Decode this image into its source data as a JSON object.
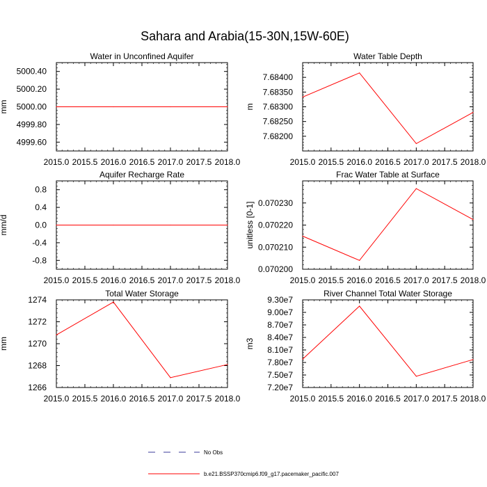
{
  "title": "Sahara and Arabia(15-30N,15W-60E)",
  "colors": {
    "series": "#ff0000",
    "obs": "#3b3b9a",
    "axis": "#000000"
  },
  "legend": {
    "obs_label": "No Obs",
    "model_label": "b.e21.BSSP370cmip6.f09_g17.pacemaker_pacific.007"
  },
  "chart_data": [
    {
      "type": "line",
      "title": "Water in Unconfined Aquifer",
      "ylabel": "mm",
      "xlabel": "",
      "x": [
        2015,
        2016,
        2017,
        2018
      ],
      "y": [
        5000.0,
        5000.0,
        5000.0,
        5000.0
      ],
      "xlim": [
        2015,
        2018
      ],
      "ylim": [
        4999.5,
        5000.5
      ],
      "yticks": [
        4999.6,
        4999.8,
        5000.0,
        5000.2,
        5000.4
      ],
      "yticklabels": [
        "4999.60",
        "4999.80",
        "5000.00",
        "5000.20",
        "5000.40"
      ]
    },
    {
      "type": "line",
      "title": "Water Table Depth",
      "ylabel": "m",
      "xlabel": "",
      "x": [
        2015,
        2016,
        2017,
        2018
      ],
      "y": [
        7.68333,
        7.68415,
        7.68175,
        7.68281
      ],
      "xlim": [
        2015,
        2018
      ],
      "ylim": [
        7.6815,
        7.6845
      ],
      "yticks": [
        7.682,
        7.6825,
        7.683,
        7.6835,
        7.684
      ],
      "yticklabels": [
        "7.68200",
        "7.68250",
        "7.68300",
        "7.68350",
        "7.68400"
      ]
    },
    {
      "type": "line",
      "title": "Aquifer Recharge Rate",
      "ylabel": "mm/d",
      "xlabel": "",
      "x": [
        2015,
        2016,
        2017,
        2018
      ],
      "y": [
        0,
        0,
        0,
        0
      ],
      "xlim": [
        2015,
        2018
      ],
      "ylim": [
        -1,
        1
      ],
      "yticks": [
        -0.8,
        -0.4,
        0,
        0.4,
        0.8
      ],
      "yticklabels": [
        "-0.8",
        "-0.4",
        "0.0",
        "0.4",
        "0.8"
      ]
    },
    {
      "type": "line",
      "title": "Frac Water Table at Surface",
      "ylabel": "unitless [0-1]",
      "xlabel": "",
      "x": [
        2015,
        2016,
        2017,
        2018
      ],
      "y": [
        0.070215,
        0.070204,
        0.0702365,
        0.0702225
      ],
      "xlim": [
        2015,
        2018
      ],
      "ylim": [
        0.0702,
        0.07024
      ],
      "yticks": [
        0.0702,
        0.07021,
        0.07022,
        0.07023
      ],
      "yticklabels": [
        "0.070200",
        "0.070210",
        "0.070220",
        "0.070230"
      ]
    },
    {
      "type": "line",
      "title": "Total Water Storage",
      "ylabel": "mm",
      "xlabel": "",
      "x": [
        2015,
        2016,
        2017,
        2018
      ],
      "y": [
        1270.8,
        1273.8,
        1266.9,
        1268.1
      ],
      "xlim": [
        2015,
        2018
      ],
      "ylim": [
        1266,
        1274
      ],
      "yticks": [
        1266,
        1268,
        1270,
        1272,
        1274
      ],
      "yticklabels": [
        "1266",
        "1268",
        "1270",
        "1272",
        "1274"
      ]
    },
    {
      "type": "line",
      "title": "River Channel Total Water Storage",
      "ylabel": "m3",
      "xlabel": "",
      "x": [
        2015,
        2016,
        2017,
        2018
      ],
      "y": [
        78800000,
        91500000,
        74700000,
        78700000
      ],
      "xlim": [
        2015,
        2018
      ],
      "ylim": [
        72000000,
        93000000
      ],
      "yticks": [
        72000000,
        75000000,
        78000000,
        81000000,
        84000000,
        87000000,
        90000000,
        93000000
      ],
      "yticklabels": [
        "7.20e7",
        "7.50e7",
        "7.80e7",
        "8.10e7",
        "8.40e7",
        "8.70e7",
        "9.00e7",
        "9.30e7"
      ]
    }
  ],
  "xticks": [
    2015.0,
    2015.5,
    2016.0,
    2016.5,
    2017.0,
    2017.5,
    2018.0
  ],
  "xticklabels": [
    "2015.0",
    "2015.5",
    "2016.0",
    "2016.5",
    "2017.0",
    "2017.5",
    "2018.0"
  ]
}
